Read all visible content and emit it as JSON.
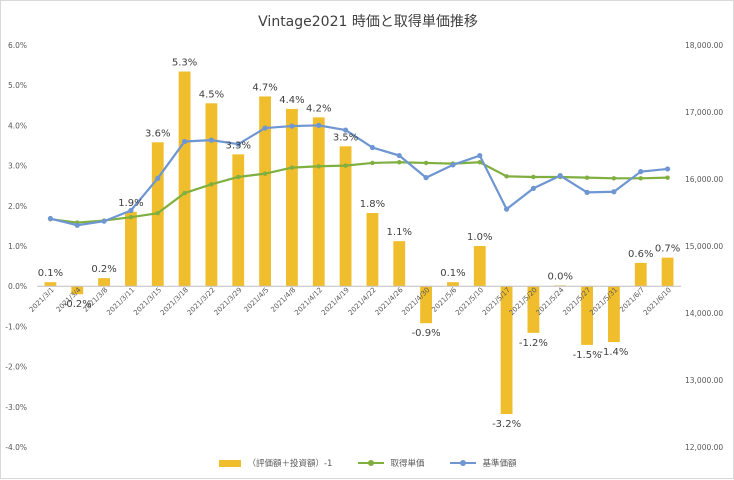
{
  "chart_data": {
    "type": "bar+line",
    "title": "Vintage2021 時価と取得単価推移",
    "categories": [
      "2021/3/1",
      "2021/3/4",
      "2021/3/8",
      "2021/3/11",
      "2021/3/15",
      "2021/3/18",
      "2021/3/22",
      "2021/3/29",
      "2021/4/5",
      "2021/4/8",
      "2021/4/12",
      "2021/4/19",
      "2021/4/22",
      "2021/4/26",
      "2021/4/30",
      "2021/5/6",
      "2021/5/10",
      "2021/5/17",
      "2021/5/20",
      "2021/5/24",
      "2021/5/27",
      "2021/5/31",
      "2021/6/7",
      "2021/6/10"
    ],
    "y_left": {
      "min": -4.0,
      "max": 6.0,
      "step": 1.0,
      "ticks": [
        "-4.0%",
        "-3.0%",
        "-2.0%",
        "-1.0%",
        "0.0%",
        "1.0%",
        "2.0%",
        "3.0%",
        "4.0%",
        "5.0%",
        "6.0%"
      ]
    },
    "y_right": {
      "min": 12000,
      "max": 18000,
      "step": 1000,
      "ticks": [
        "12,000.00",
        "13,000.00",
        "14,000.00",
        "15,000.00",
        "16,000.00",
        "17,000.00",
        "18,000.00"
      ]
    },
    "legend_position": "bottom",
    "series": [
      {
        "name": "（評価額＋投資額）-1",
        "type": "bar",
        "axis": "left",
        "color": "#F0BE2C",
        "values": [
          0.1,
          -0.2,
          0.2,
          1.85,
          3.58,
          5.34,
          4.55,
          3.28,
          4.72,
          4.41,
          4.2,
          3.48,
          1.82,
          1.12,
          -0.92,
          0.1,
          1.0,
          -3.18,
          -1.16,
          0.02,
          -1.46,
          -1.39,
          0.58,
          0.71
        ],
        "labels": [
          "0.1%",
          "-0.2%",
          "0.2%",
          "1.9%",
          "3.6%",
          "5.3%",
          "4.5%",
          "3.3%",
          "4.7%",
          "4.4%",
          "4.2%",
          "3.5%",
          "1.8%",
          "1.1%",
          "-0.9%",
          "0.1%",
          "1.0%",
          "-3.2%",
          "-1.2%",
          "0.0%",
          "-1.5%",
          "-1.4%",
          "0.6%",
          "0.7%"
        ]
      },
      {
        "name": "取得単価",
        "type": "line",
        "axis": "right",
        "color": "#7FAF3F",
        "values": [
          15400,
          15350,
          15380,
          15430,
          15490,
          15790,
          15920,
          16030,
          16080,
          16170,
          16190,
          16200,
          16240,
          16250,
          16240,
          16230,
          16250,
          16040,
          16030,
          16030,
          16020,
          16010,
          16010,
          16020
        ]
      },
      {
        "name": "基準価額",
        "type": "line",
        "axis": "right",
        "color": "#6E96D2",
        "values": [
          15410,
          15310,
          15370,
          15530,
          16010,
          16560,
          16580,
          16520,
          16760,
          16790,
          16800,
          16730,
          16470,
          16350,
          16020,
          16210,
          16350,
          15550,
          15860,
          16050,
          15800,
          15810,
          16110,
          16150
        ]
      }
    ]
  }
}
